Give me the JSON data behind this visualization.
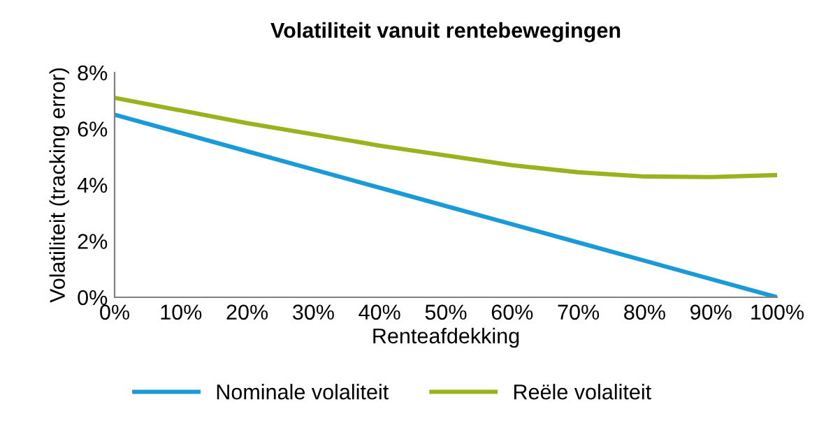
{
  "chart_data": {
    "type": "line",
    "title": "Volatiliteit vanuit rentebewegingen",
    "xlabel": "Renteafdekking",
    "ylabel": "Volatiliteit (tracking error)",
    "x": [
      0,
      10,
      20,
      30,
      40,
      50,
      60,
      70,
      80,
      90,
      100
    ],
    "series": [
      {
        "name": "Nominale volaliteit",
        "color": "#1a9ad6",
        "values": [
          6.5,
          5.85,
          5.2,
          4.55,
          3.9,
          3.25,
          2.6,
          1.95,
          1.3,
          0.65,
          0
        ]
      },
      {
        "name": "Reële volaliteit",
        "color": "#99b31f",
        "values": [
          7.1,
          6.65,
          6.2,
          5.8,
          5.4,
          5.05,
          4.7,
          4.45,
          4.3,
          4.28,
          4.35
        ]
      }
    ],
    "xlim": [
      0,
      100
    ],
    "xticks": [
      {
        "value": 0,
        "label": "0%"
      },
      {
        "value": 10,
        "label": "10%"
      },
      {
        "value": 20,
        "label": "20%"
      },
      {
        "value": 30,
        "label": "30%"
      },
      {
        "value": 40,
        "label": "40%"
      },
      {
        "value": 50,
        "label": "50%"
      },
      {
        "value": 60,
        "label": "60%"
      },
      {
        "value": 70,
        "label": "70%"
      },
      {
        "value": 80,
        "label": "80%"
      },
      {
        "value": 90,
        "label": "90%"
      },
      {
        "value": 100,
        "label": "100%"
      }
    ],
    "ylim": [
      0,
      8
    ],
    "yticks": [
      {
        "value": 0,
        "label": "0%"
      },
      {
        "value": 2,
        "label": "2%"
      },
      {
        "value": 4,
        "label": "4%"
      },
      {
        "value": 6,
        "label": "6%"
      },
      {
        "value": 8,
        "label": "8%"
      }
    ],
    "grid": false,
    "legend": "bottom",
    "marker": "none",
    "line_style": "solid"
  }
}
